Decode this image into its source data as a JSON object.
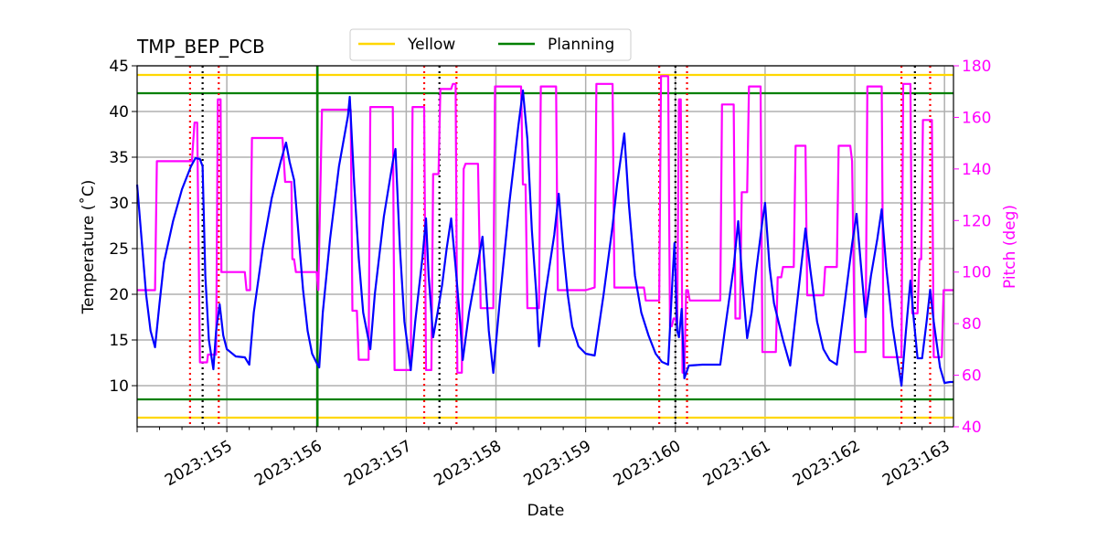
{
  "chart_data": {
    "type": "line",
    "title": "TMP_BEP_PCB",
    "xlabel": "Date",
    "ylabel": "Temperature ($^\\circ$C)",
    "ylabel_display": "Temperature (˚C)",
    "y2label": "Pitch (deg)",
    "x_range": [
      154.0,
      163.1
    ],
    "xlim": [
      154.0,
      163.1
    ],
    "ylim": [
      5.5,
      45
    ],
    "y2lim": [
      40,
      180
    ],
    "x_ticks": [
      155,
      156,
      157,
      158,
      159,
      160,
      161,
      162,
      163
    ],
    "x_tick_labels": [
      "2023:155",
      "2023:156",
      "2023:157",
      "2023:158",
      "2023:159",
      "2023:160",
      "2023:161",
      "2023:162",
      "2023:163"
    ],
    "y_ticks": [
      10,
      15,
      20,
      25,
      30,
      35,
      40,
      45
    ],
    "y_tick_labels": [
      "10",
      "15",
      "20",
      "25",
      "30",
      "35",
      "40",
      "45"
    ],
    "y2_ticks": [
      40,
      60,
      80,
      100,
      120,
      140,
      160,
      180
    ],
    "y2_tick_labels": [
      "40",
      "60",
      "80",
      "100",
      "120",
      "140",
      "160",
      "180"
    ],
    "grid": true,
    "legend_position": "top-center",
    "legend": [
      {
        "label": "Yellow",
        "color": "#FFD700"
      },
      {
        "label": "Planning",
        "color": "#008000"
      }
    ],
    "colors": {
      "temperature": "#0000FF",
      "pitch": "#FF00FF",
      "yellow": "#FFD700",
      "planning": "#008000",
      "events_red": "#FF0000",
      "events_black": "#000000",
      "pitch_axis": "#FF00FF"
    },
    "limit_lines": [
      {
        "name": "yellow-hi",
        "y": 44.0,
        "color": "#FFD700"
      },
      {
        "name": "yellow-lo",
        "y": 6.5,
        "color": "#FFD700"
      },
      {
        "name": "planning-hi",
        "y": 42.0,
        "color": "#008000"
      },
      {
        "name": "planning-lo",
        "y": 8.5,
        "color": "#008000"
      }
    ],
    "planning_vline_x": 156.01,
    "event_lines_red": [
      154.59,
      154.91,
      157.2,
      157.56,
      159.82,
      160.13,
      162.52,
      162.84
    ],
    "event_lines_black": [
      154.73,
      157.37,
      160.0,
      162.67
    ],
    "series": [
      {
        "name": "Temperature",
        "axis": "left",
        "color": "#0000FF",
        "points": [
          [
            154.0,
            32.0
          ],
          [
            154.05,
            26.0
          ],
          [
            154.1,
            20.0
          ],
          [
            154.15,
            16.0
          ],
          [
            154.2,
            14.2
          ],
          [
            154.25,
            19.0
          ],
          [
            154.3,
            23.5
          ],
          [
            154.4,
            28.0
          ],
          [
            154.5,
            31.5
          ],
          [
            154.6,
            34.0
          ],
          [
            154.65,
            34.9
          ],
          [
            154.7,
            34.8
          ],
          [
            154.73,
            34.0
          ],
          [
            154.76,
            22.0
          ],
          [
            154.8,
            15.0
          ],
          [
            154.85,
            11.8
          ],
          [
            154.88,
            16.0
          ],
          [
            154.92,
            18.9
          ],
          [
            154.96,
            15.5
          ],
          [
            155.0,
            14.0
          ],
          [
            155.1,
            13.2
          ],
          [
            155.2,
            13.1
          ],
          [
            155.25,
            12.3
          ],
          [
            155.3,
            18.0
          ],
          [
            155.4,
            25.0
          ],
          [
            155.5,
            30.5
          ],
          [
            155.6,
            34.5
          ],
          [
            155.66,
            36.6
          ],
          [
            155.7,
            34.5
          ],
          [
            155.75,
            32.5
          ],
          [
            155.8,
            26.5
          ],
          [
            155.85,
            20.5
          ],
          [
            155.9,
            16.0
          ],
          [
            155.95,
            13.5
          ],
          [
            156.0,
            12.5
          ],
          [
            156.03,
            12.0
          ],
          [
            156.07,
            18.0
          ],
          [
            156.15,
            26.0
          ],
          [
            156.25,
            34.0
          ],
          [
            156.35,
            39.5
          ],
          [
            156.37,
            41.6
          ],
          [
            156.42,
            32.0
          ],
          [
            156.47,
            24.0
          ],
          [
            156.52,
            18.0
          ],
          [
            156.6,
            14.0
          ],
          [
            156.65,
            20.0
          ],
          [
            156.75,
            28.5
          ],
          [
            156.85,
            34.5
          ],
          [
            156.88,
            35.9
          ],
          [
            156.93,
            25.0
          ],
          [
            156.98,
            17.0
          ],
          [
            157.05,
            11.7
          ],
          [
            157.1,
            17.0
          ],
          [
            157.18,
            24.0
          ],
          [
            157.22,
            28.3
          ],
          [
            157.25,
            22.0
          ],
          [
            157.28,
            18.0
          ],
          [
            157.3,
            15.3
          ],
          [
            157.35,
            18.0
          ],
          [
            157.4,
            21.0
          ],
          [
            157.45,
            25.0
          ],
          [
            157.5,
            28.3
          ],
          [
            157.55,
            23.0
          ],
          [
            157.6,
            17.0
          ],
          [
            157.63,
            12.8
          ],
          [
            157.7,
            18.0
          ],
          [
            157.8,
            23.5
          ],
          [
            157.85,
            26.3
          ],
          [
            157.88,
            22.0
          ],
          [
            157.92,
            16.0
          ],
          [
            157.97,
            11.4
          ],
          [
            158.05,
            20.0
          ],
          [
            158.15,
            30.0
          ],
          [
            158.25,
            38.5
          ],
          [
            158.3,
            42.3
          ],
          [
            158.35,
            37.0
          ],
          [
            158.4,
            27.0
          ],
          [
            158.45,
            20.0
          ],
          [
            158.48,
            14.3
          ],
          [
            158.55,
            20.0
          ],
          [
            158.65,
            26.5
          ],
          [
            158.7,
            31.0
          ],
          [
            158.75,
            25.0
          ],
          [
            158.8,
            20.0
          ],
          [
            158.85,
            16.5
          ],
          [
            158.92,
            14.3
          ],
          [
            159.0,
            13.5
          ],
          [
            159.1,
            13.3
          ],
          [
            159.2,
            20.0
          ],
          [
            159.3,
            27.5
          ],
          [
            159.35,
            32.0
          ],
          [
            159.4,
            35.5
          ],
          [
            159.43,
            37.6
          ],
          [
            159.48,
            30.0
          ],
          [
            159.55,
            22.0
          ],
          [
            159.62,
            18.0
          ],
          [
            159.7,
            15.5
          ],
          [
            159.78,
            13.5
          ],
          [
            159.85,
            12.6
          ],
          [
            159.92,
            12.3
          ],
          [
            159.97,
            22.0
          ],
          [
            159.99,
            25.6
          ],
          [
            160.02,
            16.0
          ],
          [
            160.04,
            15.3
          ],
          [
            160.07,
            18.4
          ],
          [
            160.1,
            10.8
          ],
          [
            160.15,
            12.2
          ],
          [
            160.3,
            12.3
          ],
          [
            160.5,
            12.3
          ],
          [
            160.55,
            16.0
          ],
          [
            160.65,
            23.0
          ],
          [
            160.7,
            28.0
          ],
          [
            160.75,
            21.0
          ],
          [
            160.8,
            15.2
          ],
          [
            160.85,
            18.0
          ],
          [
            160.9,
            22.5
          ],
          [
            160.97,
            28.0
          ],
          [
            161.0,
            30.0
          ],
          [
            161.05,
            23.0
          ],
          [
            161.1,
            19.0
          ],
          [
            161.2,
            15.0
          ],
          [
            161.28,
            12.2
          ],
          [
            161.35,
            18.5
          ],
          [
            161.45,
            27.2
          ],
          [
            161.5,
            23.0
          ],
          [
            161.58,
            17.0
          ],
          [
            161.65,
            14.0
          ],
          [
            161.72,
            12.8
          ],
          [
            161.8,
            12.3
          ],
          [
            161.9,
            20.0
          ],
          [
            161.97,
            25.5
          ],
          [
            162.02,
            28.8
          ],
          [
            162.07,
            23.0
          ],
          [
            162.12,
            17.5
          ],
          [
            162.18,
            22.0
          ],
          [
            162.25,
            26.0
          ],
          [
            162.3,
            29.3
          ],
          [
            162.35,
            23.0
          ],
          [
            162.42,
            16.5
          ],
          [
            162.52,
            10.0
          ],
          [
            162.57,
            16.0
          ],
          [
            162.62,
            21.5
          ],
          [
            162.66,
            17.0
          ],
          [
            162.7,
            13.0
          ],
          [
            162.75,
            13.0
          ],
          [
            162.8,
            17.0
          ],
          [
            162.84,
            20.5
          ],
          [
            162.88,
            17.0
          ],
          [
            162.95,
            12.0
          ],
          [
            163.0,
            10.3
          ],
          [
            163.06,
            10.4
          ],
          [
            163.1,
            10.4
          ]
        ]
      },
      {
        "name": "Pitch",
        "axis": "right",
        "color": "#FF00FF",
        "points": [
          [
            154.0,
            93
          ],
          [
            154.2,
            93
          ],
          [
            154.22,
            143
          ],
          [
            154.6,
            143
          ],
          [
            154.61,
            143
          ],
          [
            154.64,
            158
          ],
          [
            154.67,
            158
          ],
          [
            154.7,
            65
          ],
          [
            154.78,
            65
          ],
          [
            154.79,
            68
          ],
          [
            154.88,
            68
          ],
          [
            154.9,
            167
          ],
          [
            154.93,
            167
          ],
          [
            154.94,
            100
          ],
          [
            155.2,
            100
          ],
          [
            155.22,
            93
          ],
          [
            155.26,
            93
          ],
          [
            155.28,
            152
          ],
          [
            155.62,
            152
          ],
          [
            155.65,
            135
          ],
          [
            155.72,
            135
          ],
          [
            155.73,
            105
          ],
          [
            155.75,
            105
          ],
          [
            155.77,
            100
          ],
          [
            156.0,
            100
          ],
          [
            156.02,
            93
          ],
          [
            156.06,
            163
          ],
          [
            156.32,
            163
          ],
          [
            156.38,
            163
          ],
          [
            156.4,
            85
          ],
          [
            156.45,
            85
          ],
          [
            156.47,
            66
          ],
          [
            156.58,
            66
          ],
          [
            156.6,
            164
          ],
          [
            156.85,
            164
          ],
          [
            156.87,
            62
          ],
          [
            157.05,
            62
          ],
          [
            157.07,
            164
          ],
          [
            157.2,
            164
          ],
          [
            157.22,
            62
          ],
          [
            157.28,
            62
          ],
          [
            157.3,
            138
          ],
          [
            157.36,
            138
          ],
          [
            157.38,
            171
          ],
          [
            157.5,
            171
          ],
          [
            157.52,
            173
          ],
          [
            157.55,
            173
          ],
          [
            157.57,
            61
          ],
          [
            157.62,
            61
          ],
          [
            157.64,
            140
          ],
          [
            157.66,
            142
          ],
          [
            157.8,
            142
          ],
          [
            157.83,
            86
          ],
          [
            157.97,
            86
          ],
          [
            157.99,
            172
          ],
          [
            158.28,
            172
          ],
          [
            158.3,
            134
          ],
          [
            158.33,
            134
          ],
          [
            158.35,
            86
          ],
          [
            158.48,
            86
          ],
          [
            158.5,
            172
          ],
          [
            158.67,
            172
          ],
          [
            158.69,
            93
          ],
          [
            159.0,
            93
          ],
          [
            159.1,
            94
          ],
          [
            159.12,
            173
          ],
          [
            159.3,
            173
          ],
          [
            159.32,
            94
          ],
          [
            159.65,
            94
          ],
          [
            159.67,
            89
          ],
          [
            159.82,
            89
          ],
          [
            159.84,
            176
          ],
          [
            159.92,
            176
          ],
          [
            159.94,
            79
          ],
          [
            159.96,
            79
          ],
          [
            159.98,
            82
          ],
          [
            160.0,
            82
          ],
          [
            160.02,
            80
          ],
          [
            160.04,
            167
          ],
          [
            160.06,
            167
          ],
          [
            160.08,
            61
          ],
          [
            160.1,
            61
          ],
          [
            160.12,
            93
          ],
          [
            160.14,
            93
          ],
          [
            160.16,
            89
          ],
          [
            160.5,
            89
          ],
          [
            160.52,
            165
          ],
          [
            160.65,
            165
          ],
          [
            160.67,
            82
          ],
          [
            160.72,
            82
          ],
          [
            160.74,
            131
          ],
          [
            160.8,
            131
          ],
          [
            160.82,
            172
          ],
          [
            160.95,
            172
          ],
          [
            160.97,
            69
          ],
          [
            161.12,
            69
          ],
          [
            161.14,
            98
          ],
          [
            161.18,
            98
          ],
          [
            161.2,
            102
          ],
          [
            161.32,
            102
          ],
          [
            161.34,
            149
          ],
          [
            161.45,
            149
          ],
          [
            161.47,
            91
          ],
          [
            161.65,
            91
          ],
          [
            161.67,
            102
          ],
          [
            161.8,
            102
          ],
          [
            161.82,
            149
          ],
          [
            161.95,
            149
          ],
          [
            161.97,
            143
          ],
          [
            162.0,
            69
          ],
          [
            162.12,
            69
          ],
          [
            162.14,
            172
          ],
          [
            162.3,
            172
          ],
          [
            162.32,
            67
          ],
          [
            162.52,
            67
          ],
          [
            162.54,
            173
          ],
          [
            162.62,
            173
          ],
          [
            162.64,
            84
          ],
          [
            162.7,
            84
          ],
          [
            162.72,
            105
          ],
          [
            162.74,
            105
          ],
          [
            162.76,
            159
          ],
          [
            162.86,
            159
          ],
          [
            162.88,
            67
          ],
          [
            162.97,
            67
          ],
          [
            162.99,
            93
          ],
          [
            163.1,
            93
          ]
        ]
      }
    ]
  }
}
